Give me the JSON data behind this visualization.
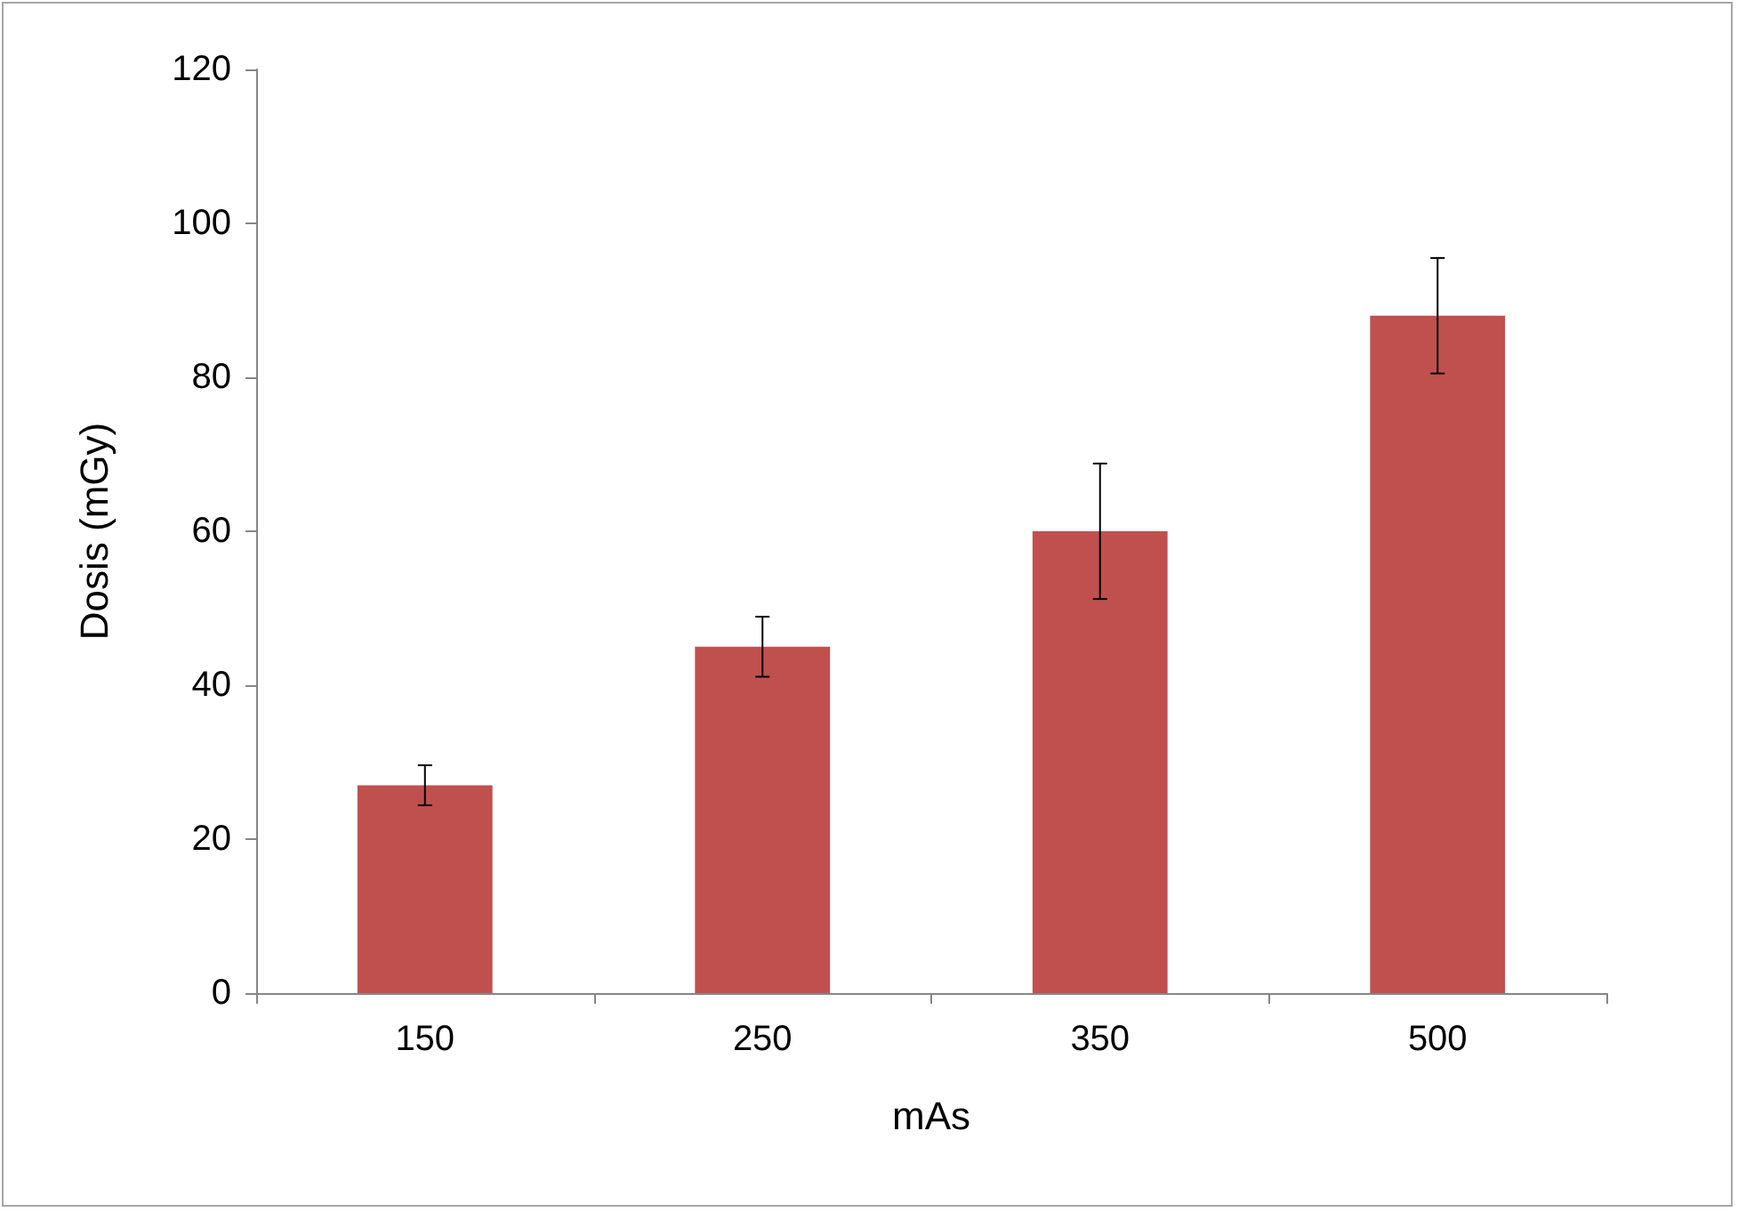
{
  "chart_data": {
    "type": "bar",
    "xlabel": "mAs",
    "ylabel": "Dosis (mGy)",
    "categories": [
      "150",
      "250",
      "350",
      "500"
    ],
    "values": [
      27,
      45,
      60,
      88
    ],
    "errors": [
      2.6,
      3.9,
      8.8,
      7.5
    ],
    "color": "#c0504d",
    "ylim": [
      0,
      120
    ],
    "yticks": [
      0,
      20,
      40,
      60,
      80,
      100,
      120
    ],
    "grid": false
  }
}
